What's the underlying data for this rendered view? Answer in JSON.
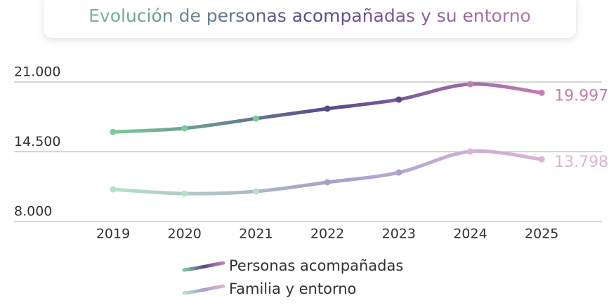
{
  "chart_data": {
    "type": "line",
    "title": "Evolución de personas acompañadas y su entorno",
    "title_colors": [
      "#7ccb98",
      "#574a8c",
      "#c47db2"
    ],
    "categories": [
      "2019",
      "2020",
      "2021",
      "2022",
      "2023",
      "2024",
      "2025"
    ],
    "series": [
      {
        "name": "Personas acompañadas",
        "color": [
          "#7ccb98",
          "#574a8c",
          "#c47db2"
        ],
        "values": [
          16350,
          16690,
          17600,
          18520,
          19370,
          20800,
          19997
        ],
        "value_labels": [
          null,
          null,
          null,
          null,
          null,
          null,
          "19.997"
        ]
      },
      {
        "name": "Familia y entorno",
        "color": [
          "#b3e2c5",
          "#a8a2cb",
          "#dbb4d5"
        ],
        "values": [
          11000,
          10610,
          10810,
          11660,
          12570,
          14530,
          13798
        ],
        "value_labels": [
          null,
          null,
          null,
          null,
          null,
          null,
          "13.798"
        ]
      }
    ],
    "ylim": [
      8000,
      21000
    ],
    "yticks": [
      {
        "value": 8000,
        "label": "8.000"
      },
      {
        "value": 14500,
        "label": "14.500"
      },
      {
        "value": 21000,
        "label": "21.000"
      }
    ],
    "grid": true,
    "legend": "bottom"
  }
}
